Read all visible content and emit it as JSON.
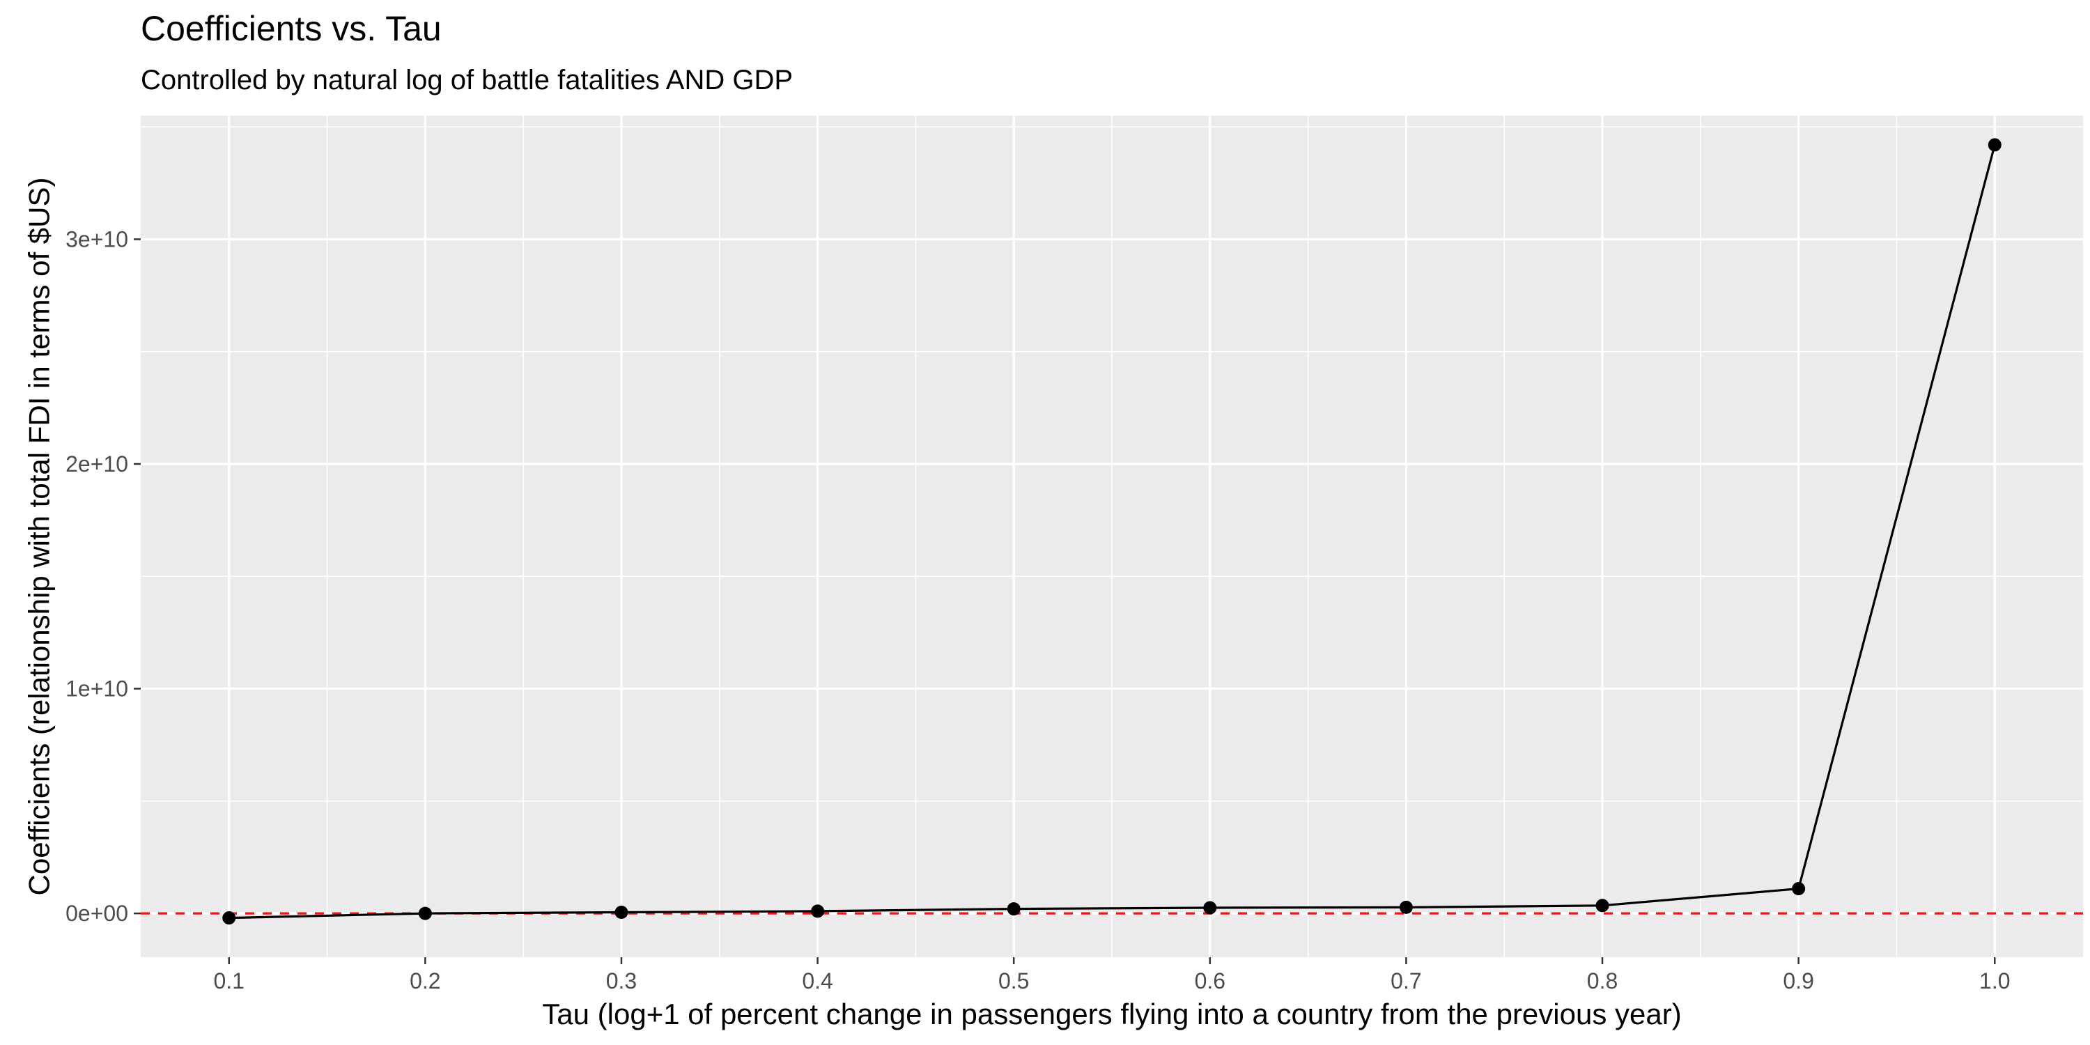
{
  "chart_data": {
    "type": "line",
    "title": "Coefficients vs. Tau",
    "subtitle": "Controlled by natural log of battle fatalities AND GDP",
    "xlabel": "Tau (log+1 of percent change in passengers flying into a country from the previous year)",
    "ylabel": "Coefficients (relationship with total FDI in terms of $US)",
    "xlim": [
      0.055,
      1.045
    ],
    "ylim": [
      -1950000000,
      35500000000
    ],
    "x_ticks": [
      0.1,
      0.2,
      0.3,
      0.4,
      0.5,
      0.6,
      0.7,
      0.8,
      0.9,
      1.0
    ],
    "x_tick_labels": [
      "0.1",
      "0.2",
      "0.3",
      "0.4",
      "0.5",
      "0.6",
      "0.7",
      "0.8",
      "0.9",
      "1.0"
    ],
    "y_ticks": [
      0,
      10000000000,
      20000000000,
      30000000000
    ],
    "y_tick_labels": [
      "0e+00",
      "1e+10",
      "2e+10",
      "3e+10"
    ],
    "grid": true,
    "reference_line": {
      "y": 0,
      "style": "dashed",
      "color": "#e41a1c"
    },
    "series": [
      {
        "color": "#000000",
        "x": [
          0.1,
          0.2,
          0.3,
          0.4,
          0.5,
          0.6,
          0.7,
          0.8,
          0.9,
          1.0
        ],
        "y": [
          -200000000,
          0,
          50000000,
          100000000,
          200000000,
          250000000,
          270000000,
          350000000,
          1100000000,
          34200000000
        ]
      }
    ]
  }
}
